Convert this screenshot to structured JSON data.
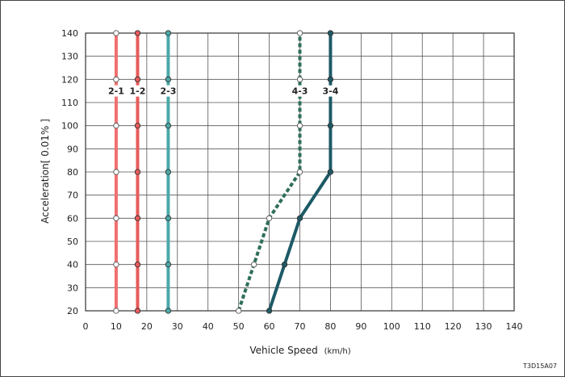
{
  "chart_data": {
    "type": "line",
    "xlabel": "Vehicle Speed",
    "xunit": "(km/h)",
    "ylabel": "Acceleration[ 0.01% ]",
    "xlim": [
      0,
      140
    ],
    "ylim": [
      20,
      140
    ],
    "xticks": [
      0,
      10,
      20,
      30,
      40,
      50,
      60,
      70,
      80,
      90,
      100,
      110,
      120,
      130,
      140
    ],
    "yticks": [
      20,
      30,
      40,
      50,
      60,
      70,
      80,
      90,
      100,
      110,
      120,
      130,
      140
    ],
    "grid": true,
    "series": [
      {
        "name": "2-1",
        "color": "#f07070",
        "style": "solid",
        "marker": "open",
        "points": [
          [
            10,
            20
          ],
          [
            10,
            40
          ],
          [
            10,
            60
          ],
          [
            10,
            80
          ],
          [
            10,
            100
          ],
          [
            10,
            120
          ],
          [
            10,
            140
          ]
        ]
      },
      {
        "name": "1-2",
        "color": "#e85a5a",
        "style": "solid",
        "marker": "filled",
        "points": [
          [
            17,
            20
          ],
          [
            17,
            40
          ],
          [
            17,
            60
          ],
          [
            17,
            80
          ],
          [
            17,
            100
          ],
          [
            17,
            120
          ],
          [
            17,
            140
          ]
        ]
      },
      {
        "name": "2-3",
        "color": "#4aa8a8",
        "style": "solid",
        "marker": "filled",
        "points": [
          [
            27,
            20
          ],
          [
            27,
            40
          ],
          [
            27,
            60
          ],
          [
            27,
            80
          ],
          [
            27,
            100
          ],
          [
            27,
            120
          ],
          [
            27,
            140
          ]
        ]
      },
      {
        "name": "4-3",
        "color": "#2e6e5a",
        "style": "dashed",
        "marker": "open",
        "points": [
          [
            50,
            20
          ],
          [
            55,
            40
          ],
          [
            60,
            60
          ],
          [
            70,
            80
          ],
          [
            70,
            100
          ],
          [
            70,
            120
          ],
          [
            70,
            140
          ]
        ]
      },
      {
        "name": "3-4",
        "color": "#1d5a66",
        "style": "solid",
        "marker": "filled",
        "points": [
          [
            60,
            20
          ],
          [
            65,
            40
          ],
          [
            70,
            60
          ],
          [
            80,
            80
          ],
          [
            80,
            100
          ],
          [
            80,
            120
          ],
          [
            80,
            140
          ]
        ]
      }
    ],
    "label_y": 115
  },
  "code": "T3D15A07"
}
